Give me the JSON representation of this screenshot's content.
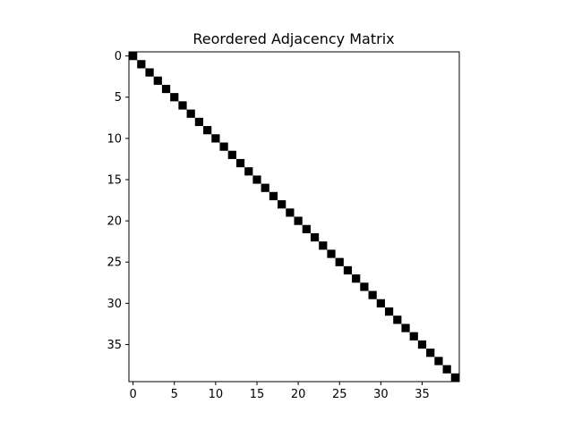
{
  "chart_data": {
    "type": "heatmap",
    "title": "Reordered Adjacency Matrix",
    "xlabel": "",
    "ylabel": "",
    "size": 40,
    "xlim": [
      -0.5,
      39.5
    ],
    "ylim": [
      39.5,
      -0.5
    ],
    "xticks": [
      0,
      5,
      10,
      15,
      20,
      25,
      30,
      35
    ],
    "yticks": [
      0,
      5,
      10,
      15,
      20,
      25,
      30,
      35
    ],
    "grid": false,
    "legend": "none",
    "colormap": "binary",
    "cell_color": "#000000",
    "background_color": "#ffffff",
    "nonzero_cells": [
      [
        0,
        0
      ],
      [
        1,
        1
      ],
      [
        2,
        2
      ],
      [
        3,
        3
      ],
      [
        4,
        4
      ],
      [
        5,
        5
      ],
      [
        6,
        6
      ],
      [
        7,
        7
      ],
      [
        8,
        8
      ],
      [
        9,
        9
      ],
      [
        10,
        10
      ],
      [
        11,
        11
      ],
      [
        12,
        12
      ],
      [
        13,
        13
      ],
      [
        14,
        14
      ],
      [
        15,
        15
      ],
      [
        16,
        16
      ],
      [
        17,
        17
      ],
      [
        18,
        18
      ],
      [
        19,
        19
      ],
      [
        20,
        20
      ],
      [
        21,
        21
      ],
      [
        22,
        22
      ],
      [
        23,
        23
      ],
      [
        24,
        24
      ],
      [
        25,
        25
      ],
      [
        26,
        26
      ],
      [
        27,
        27
      ],
      [
        28,
        28
      ],
      [
        29,
        29
      ],
      [
        30,
        30
      ],
      [
        31,
        31
      ],
      [
        32,
        32
      ],
      [
        33,
        33
      ],
      [
        34,
        34
      ],
      [
        35,
        35
      ],
      [
        36,
        36
      ],
      [
        37,
        37
      ],
      [
        38,
        38
      ],
      [
        39,
        39
      ]
    ]
  }
}
